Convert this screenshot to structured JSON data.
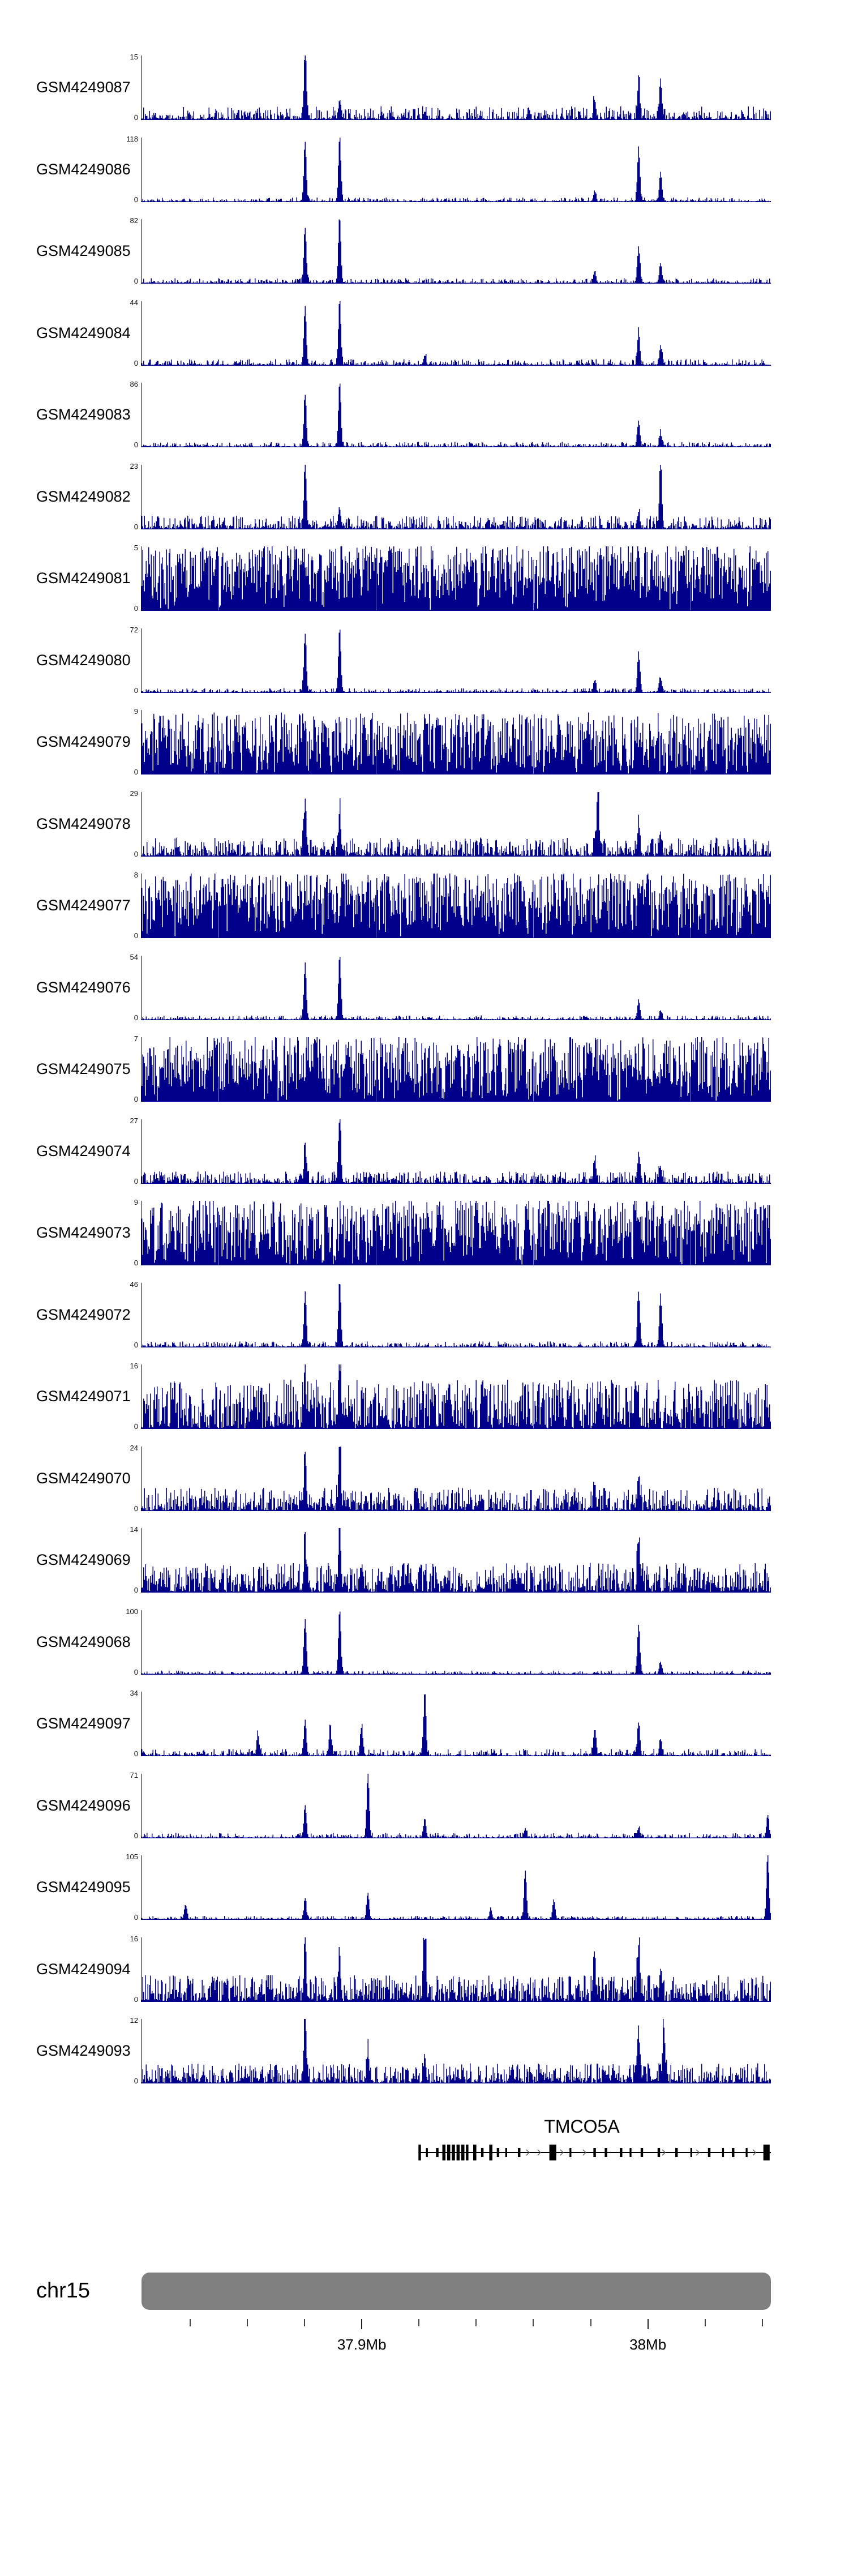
{
  "chart_data": {
    "type": "area",
    "title": "",
    "description": "Genome browser coverage tracks of GEO samples over chr15 around the TMCO5A locus",
    "y_zero_label": "0",
    "colors": {
      "signal": "#00008B",
      "ideogram": "#808080",
      "gene": "#000000",
      "arrow": "#5a5a5a"
    },
    "x_axis": {
      "start_mb": 37.823,
      "end_mb": 38.043,
      "minor_ticks_mb": [
        37.84,
        37.86,
        37.88,
        37.9,
        37.92,
        37.94,
        37.96,
        37.98,
        38.0,
        38.02,
        38.04
      ],
      "labeled_ticks": [
        {
          "mb": 37.9,
          "label": "37.9Mb"
        },
        {
          "mb": 38.0,
          "label": "38Mb"
        }
      ]
    },
    "tracks": [
      {
        "name": "GSM4249087",
        "ymax": 15,
        "ymin": 0,
        "noise_amp": 0.2,
        "noise_pow": 2.6,
        "seed": 1,
        "peaks": [
          [
            0.26,
            1.0
          ],
          [
            0.315,
            0.3
          ],
          [
            0.45,
            0.12
          ],
          [
            0.72,
            0.3
          ],
          [
            0.79,
            0.55
          ],
          [
            0.825,
            0.6
          ]
        ]
      },
      {
        "name": "GSM4249086",
        "ymax": 118,
        "ymin": 0,
        "noise_amp": 0.06,
        "noise_pow": 3.5,
        "seed": 2,
        "peaks": [
          [
            0.26,
            0.9
          ],
          [
            0.315,
            1.0
          ],
          [
            0.72,
            0.15
          ],
          [
            0.79,
            0.8
          ],
          [
            0.825,
            0.45
          ]
        ]
      },
      {
        "name": "GSM4249085",
        "ymax": 82,
        "ymin": 0,
        "noise_amp": 0.07,
        "noise_pow": 3.5,
        "seed": 3,
        "peaks": [
          [
            0.26,
            0.85
          ],
          [
            0.315,
            1.0
          ],
          [
            0.72,
            0.18
          ],
          [
            0.79,
            0.55
          ],
          [
            0.825,
            0.3
          ]
        ]
      },
      {
        "name": "GSM4249084",
        "ymax": 44,
        "ymin": 0,
        "noise_amp": 0.09,
        "noise_pow": 3.2,
        "seed": 4,
        "peaks": [
          [
            0.26,
            0.85
          ],
          [
            0.315,
            1.0
          ],
          [
            0.45,
            0.15
          ],
          [
            0.79,
            0.5
          ],
          [
            0.825,
            0.28
          ]
        ]
      },
      {
        "name": "GSM4249083",
        "ymax": 86,
        "ymin": 0,
        "noise_amp": 0.07,
        "noise_pow": 3.5,
        "seed": 5,
        "peaks": [
          [
            0.26,
            0.8
          ],
          [
            0.315,
            1.0
          ],
          [
            0.79,
            0.4
          ],
          [
            0.825,
            0.2
          ]
        ]
      },
      {
        "name": "GSM4249082",
        "ymax": 23,
        "ymin": 0,
        "noise_amp": 0.2,
        "noise_pow": 2.4,
        "seed": 6,
        "peaks": [
          [
            0.26,
            1.0
          ],
          [
            0.315,
            0.3
          ],
          [
            0.79,
            0.25
          ],
          [
            0.825,
            0.9
          ]
        ]
      },
      {
        "name": "GSM4249081",
        "ymax": 5,
        "ymin": 0,
        "noise_amp": 1.0,
        "noise_pow": 0.7,
        "seed": 7,
        "peaks": []
      },
      {
        "name": "GSM4249080",
        "ymax": 72,
        "ymin": 0,
        "noise_amp": 0.06,
        "noise_pow": 3.5,
        "seed": 8,
        "peaks": [
          [
            0.26,
            0.9
          ],
          [
            0.315,
            1.0
          ],
          [
            0.72,
            0.18
          ],
          [
            0.79,
            0.6
          ],
          [
            0.825,
            0.22
          ]
        ]
      },
      {
        "name": "GSM4249079",
        "ymax": 9,
        "ymin": 0,
        "noise_amp": 0.95,
        "noise_pow": 0.9,
        "seed": 9,
        "peaks": [
          [
            0.26,
            0.25
          ]
        ]
      },
      {
        "name": "GSM4249078",
        "ymax": 29,
        "ymin": 0,
        "noise_amp": 0.28,
        "noise_pow": 2.2,
        "seed": 10,
        "peaks": [
          [
            0.26,
            0.8
          ],
          [
            0.315,
            0.65
          ],
          [
            0.725,
            1.0
          ],
          [
            0.79,
            0.45
          ],
          [
            0.825,
            0.3
          ]
        ]
      },
      {
        "name": "GSM4249077",
        "ymax": 8,
        "ymin": 0,
        "noise_amp": 1.0,
        "noise_pow": 0.75,
        "seed": 11,
        "peaks": []
      },
      {
        "name": "GSM4249076",
        "ymax": 54,
        "ymin": 0,
        "noise_amp": 0.06,
        "noise_pow": 3.5,
        "seed": 12,
        "peaks": [
          [
            0.26,
            0.85
          ],
          [
            0.315,
            1.0
          ],
          [
            0.79,
            0.28
          ],
          [
            0.825,
            0.14
          ]
        ]
      },
      {
        "name": "GSM4249075",
        "ymax": 7,
        "ymin": 0,
        "noise_amp": 1.0,
        "noise_pow": 0.8,
        "seed": 13,
        "peaks": []
      },
      {
        "name": "GSM4249074",
        "ymax": 27,
        "ymin": 0,
        "noise_amp": 0.18,
        "noise_pow": 2.4,
        "seed": 14,
        "peaks": [
          [
            0.26,
            0.5
          ],
          [
            0.315,
            1.0
          ],
          [
            0.72,
            0.35
          ],
          [
            0.79,
            0.4
          ],
          [
            0.825,
            0.25
          ]
        ]
      },
      {
        "name": "GSM4249073",
        "ymax": 9,
        "ymin": 0,
        "noise_amp": 1.0,
        "noise_pow": 0.8,
        "seed": 15,
        "peaks": []
      },
      {
        "name": "GSM4249072",
        "ymax": 46,
        "ymin": 0,
        "noise_amp": 0.08,
        "noise_pow": 3.2,
        "seed": 16,
        "peaks": [
          [
            0.26,
            0.8
          ],
          [
            0.315,
            1.0
          ],
          [
            0.79,
            0.85
          ],
          [
            0.825,
            0.8
          ]
        ]
      },
      {
        "name": "GSM4249071",
        "ymax": 16,
        "ymin": 0,
        "noise_amp": 0.75,
        "noise_pow": 1.4,
        "seed": 17,
        "peaks": [
          [
            0.26,
            0.55
          ],
          [
            0.315,
            0.9
          ]
        ]
      },
      {
        "name": "GSM4249070",
        "ymax": 24,
        "ymin": 0,
        "noise_amp": 0.35,
        "noise_pow": 2.0,
        "seed": 18,
        "peaks": [
          [
            0.26,
            0.8
          ],
          [
            0.315,
            1.0
          ],
          [
            0.72,
            0.3
          ],
          [
            0.79,
            0.5
          ]
        ]
      },
      {
        "name": "GSM4249069",
        "ymax": 14,
        "ymin": 0,
        "noise_amp": 0.45,
        "noise_pow": 1.6,
        "seed": 19,
        "peaks": [
          [
            0.26,
            0.6
          ],
          [
            0.315,
            1.0
          ],
          [
            0.79,
            0.75
          ]
        ]
      },
      {
        "name": "GSM4249068",
        "ymax": 100,
        "ymin": 0,
        "noise_amp": 0.05,
        "noise_pow": 3.5,
        "seed": 20,
        "peaks": [
          [
            0.26,
            0.85
          ],
          [
            0.315,
            1.0
          ],
          [
            0.79,
            0.75
          ],
          [
            0.825,
            0.18
          ]
        ]
      },
      {
        "name": "GSM4249097",
        "ymax": 34,
        "ymin": 0,
        "noise_amp": 0.1,
        "noise_pow": 3.0,
        "seed": 21,
        "peaks": [
          [
            0.185,
            0.3
          ],
          [
            0.26,
            0.55
          ],
          [
            0.3,
            0.4
          ],
          [
            0.35,
            0.45
          ],
          [
            0.45,
            1.0
          ],
          [
            0.72,
            0.4
          ],
          [
            0.79,
            0.5
          ],
          [
            0.825,
            0.25
          ]
        ]
      },
      {
        "name": "GSM4249096",
        "ymax": 71,
        "ymin": 0,
        "noise_amp": 0.07,
        "noise_pow": 3.5,
        "seed": 22,
        "peaks": [
          [
            0.26,
            0.5
          ],
          [
            0.36,
            1.0
          ],
          [
            0.45,
            0.3
          ],
          [
            0.61,
            0.12
          ],
          [
            0.79,
            0.15
          ],
          [
            0.995,
            0.35
          ]
        ]
      },
      {
        "name": "GSM4249095",
        "ymax": 105,
        "ymin": 0,
        "noise_amp": 0.05,
        "noise_pow": 3.5,
        "seed": 23,
        "peaks": [
          [
            0.07,
            0.22
          ],
          [
            0.26,
            0.3
          ],
          [
            0.36,
            0.4
          ],
          [
            0.555,
            0.15
          ],
          [
            0.61,
            0.75
          ],
          [
            0.655,
            0.3
          ],
          [
            0.995,
            1.0
          ]
        ]
      },
      {
        "name": "GSM4249094",
        "ymax": 16,
        "ymin": 0,
        "noise_amp": 0.4,
        "noise_pow": 1.7,
        "seed": 24,
        "peaks": [
          [
            0.26,
            0.75
          ],
          [
            0.315,
            0.55
          ],
          [
            0.45,
            1.0
          ],
          [
            0.72,
            0.45
          ],
          [
            0.79,
            0.85
          ],
          [
            0.825,
            0.4
          ]
        ]
      },
      {
        "name": "GSM4249093",
        "ymax": 12,
        "ymin": 0,
        "noise_amp": 0.3,
        "noise_pow": 2.0,
        "seed": 25,
        "peaks": [
          [
            0.26,
            1.0
          ],
          [
            0.36,
            0.45
          ],
          [
            0.45,
            0.35
          ],
          [
            0.79,
            0.7
          ],
          [
            0.83,
            0.85
          ]
        ]
      }
    ],
    "gene_track": {
      "label": "TMCO5A",
      "span": [
        0.44,
        1.0
      ],
      "strand": "+",
      "exons": [
        [
          0.44,
          0.004,
          1
        ],
        [
          0.452,
          0.003,
          0
        ],
        [
          0.468,
          0.004,
          0
        ],
        [
          0.478,
          0.005,
          1
        ],
        [
          0.4855,
          0.005,
          1
        ],
        [
          0.493,
          0.005,
          1
        ],
        [
          0.5005,
          0.005,
          1
        ],
        [
          0.508,
          0.005,
          1
        ],
        [
          0.5155,
          0.004,
          1
        ],
        [
          0.527,
          0.005,
          1
        ],
        [
          0.5395,
          0.004,
          0
        ],
        [
          0.5525,
          0.005,
          1
        ],
        [
          0.5645,
          0.004,
          0
        ],
        [
          0.578,
          0.003,
          0
        ],
        [
          0.598,
          0.004,
          0
        ],
        [
          0.648,
          0.011,
          1
        ],
        [
          0.68,
          0.003,
          0
        ],
        [
          0.718,
          0.004,
          0
        ],
        [
          0.736,
          0.004,
          0
        ],
        [
          0.76,
          0.004,
          0
        ],
        [
          0.7755,
          0.003,
          0
        ],
        [
          0.793,
          0.004,
          0
        ],
        [
          0.82,
          0.004,
          0
        ],
        [
          0.848,
          0.004,
          0
        ],
        [
          0.872,
          0.003,
          0
        ],
        [
          0.9,
          0.004,
          0
        ],
        [
          0.9225,
          0.003,
          0
        ],
        [
          0.938,
          0.004,
          0
        ],
        [
          0.96,
          0.003,
          0
        ],
        [
          0.988,
          0.01,
          1
        ]
      ]
    },
    "ideogram": {
      "label": "chr15"
    }
  }
}
